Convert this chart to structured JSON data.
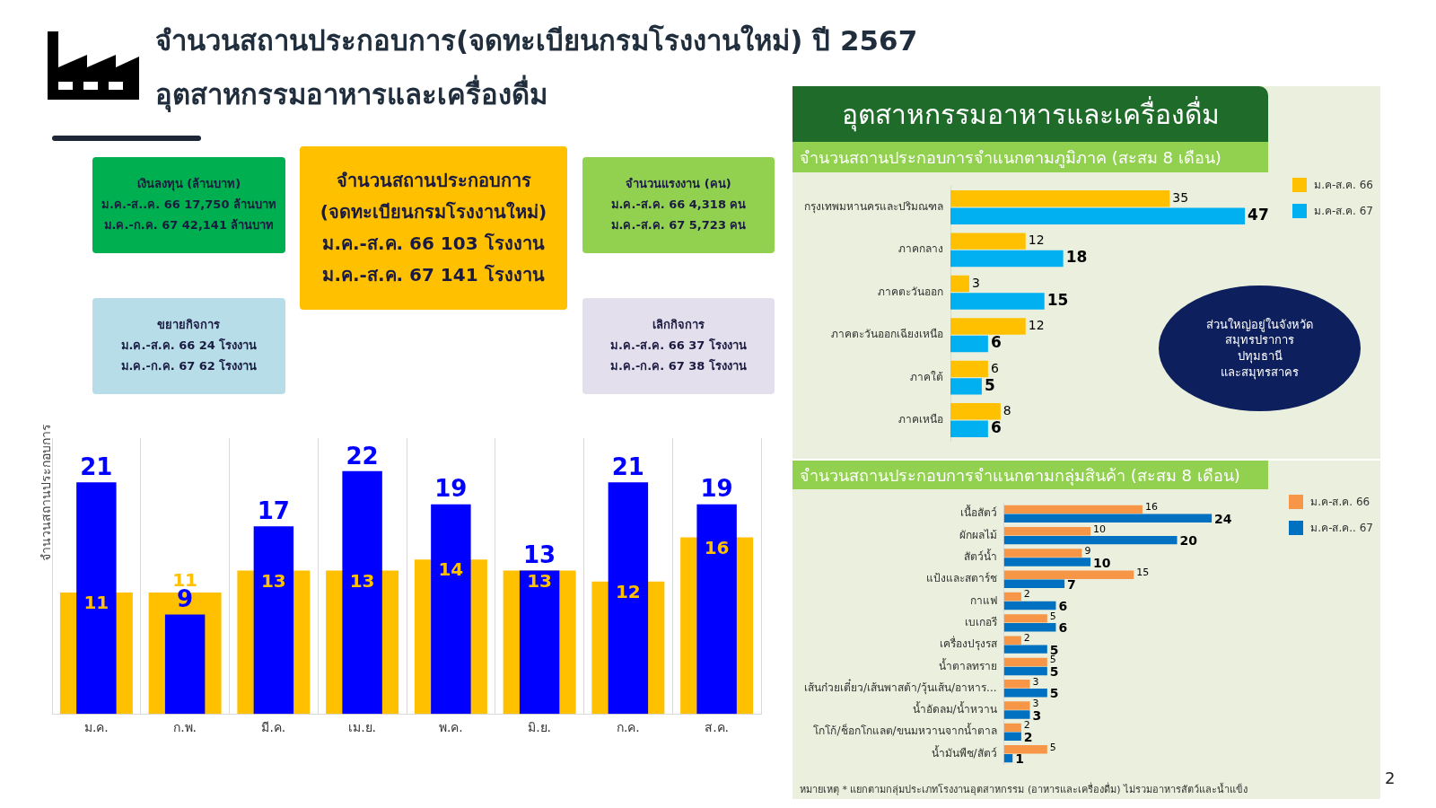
{
  "chart_data": [
    {
      "type": "other",
      "title": "จำนวนสถานประกอบการ(จดทะเบียนกรมโรงงานใหม่) ปี 2567",
      "subtitle": "อุตสาหกรรมอาหารและเครื่องดื่ม",
      "annotations": [
        "เงินลงทุน (ล้านบาท)\nม.ค.-ส..ค. 66   17,750  ล้านบาท\nม.ค.-ก.ค. 67   42,141 ล้านบาท",
        "จำนวนสถานประกอบการ\n(จดทะเบียนกรมโรงงานใหม่)\nม.ค.-ส.ค. 66   103 โรงงาน\nม.ค.-ส.ค. 67   141 โรงงาน",
        "จำนวนแรงงาน (คน)\nม.ค.-ส.ค. 66   4,318  คน\nม.ค.-ส.ค. 67   5,723  คน",
        "ขยายกิจการ\nม.ค.-ส.ค. 66 24 โรงงาน\nม.ค.-ก.ค. 67   62  โรงงาน",
        "เลิกกิจการ\nม.ค.-ส.ค. 66   37  โรงงาน\nม.ค.-ก.ค. 67    38   โรงงาน",
        "2"
      ],
      "colors": [
        "#00b050",
        "#ffc000",
        "#92d050",
        "#b7dde8",
        "#e4dfec"
      ]
    },
    {
      "type": "bar",
      "ylabel": "จำนวนสถานประกอบการ",
      "categories": [
        "ม.ค.",
        "ก.พ.",
        "มี.ค.",
        "เม.ย.",
        "พ.ค.",
        "มิ.ย.",
        "ก.ค.",
        "ส.ค."
      ],
      "series": [
        {
          "color": "#ffc000",
          "values": [
            11,
            11,
            13,
            13,
            14,
            13,
            12,
            16
          ]
        },
        {
          "color": "#0000ff",
          "values": [
            21,
            9,
            17,
            22,
            19,
            13,
            21,
            19
          ]
        }
      ],
      "data_labels": true,
      "grid": "x"
    },
    {
      "type": "bar",
      "orientation": "horizontal",
      "title": "อุตสาหกรรมอาหารและเครื่องดื่ม",
      "subtitle": "จำนวนสถานประกอบการจำแนกตามภูมิภาค  (สะสม 8 เดือน)",
      "categories": [
        "กรุงเทพมหานครและปริมณฑล",
        "ภาคกลาง",
        "ภาคตะวันออก",
        "ภาคตะวันออกเฉียงเหนือ",
        "ภาคใต้",
        "ภาคเหนือ"
      ],
      "series": [
        {
          "name": "ม.ค-ส.ค. 66",
          "color": "#ffc000",
          "values": [
            35,
            12,
            3,
            12,
            6,
            8
          ]
        },
        {
          "name": "ม.ค-ส.ค. 67",
          "color": "#00b0f0",
          "values": [
            47,
            18,
            15,
            6,
            5,
            6
          ]
        }
      ],
      "data_labels": true,
      "legend": "top right",
      "annotations": [
        "ส่วนใหญ่อยู่ในจังหวัด\nสมุทรปราการ\nปทุมธานี\nและสมุทรสาคร"
      ]
    },
    {
      "type": "bar",
      "orientation": "horizontal",
      "title": "จำนวนสถานประกอบการจำแนกตามกลุ่มสินค้า  (สะสม 8 เดือน)",
      "categories": [
        "เนื้อสัตว์",
        "ผักผลไม้",
        "สัตว์น้ำ",
        "แป้งและสตาร์ช",
        "กาแฟ",
        "เบเกอรี",
        "เครื่องปรุงรส",
        "น้ำตาลทราย",
        "เส้นก๋วยเตี๋ยว/เส้นพาสต้า/วุ้นเส้น/อาหาร...",
        "น้ำอัดลม/น้ำหวาน",
        "โกโก้/ช็อกโกแลต/ขนมหวานจากน้ำตาล",
        "น้ำมันพืช/สัตว์"
      ],
      "series": [
        {
          "name": "ม.ค-ส.ค. 66",
          "color": "#f79646",
          "values": [
            16,
            10,
            9,
            15,
            2,
            5,
            2,
            5,
            3,
            3,
            2,
            5
          ]
        },
        {
          "name": "ม.ค-ส.ค.. 67",
          "color": "#0070c0",
          "values": [
            24,
            20,
            10,
            7,
            6,
            6,
            5,
            5,
            5,
            3,
            2,
            1
          ]
        }
      ],
      "data_labels": true,
      "legend": "top right",
      "annotations": [
        "หมายเหตุ * แยกตามกลุ่มประเภทโรงงานอุตสาหกรรม  (อาหารและเครื่องดื่ม) ไม่รวมอาหารสัตว์และน้ำแข็ง"
      ]
    }
  ]
}
